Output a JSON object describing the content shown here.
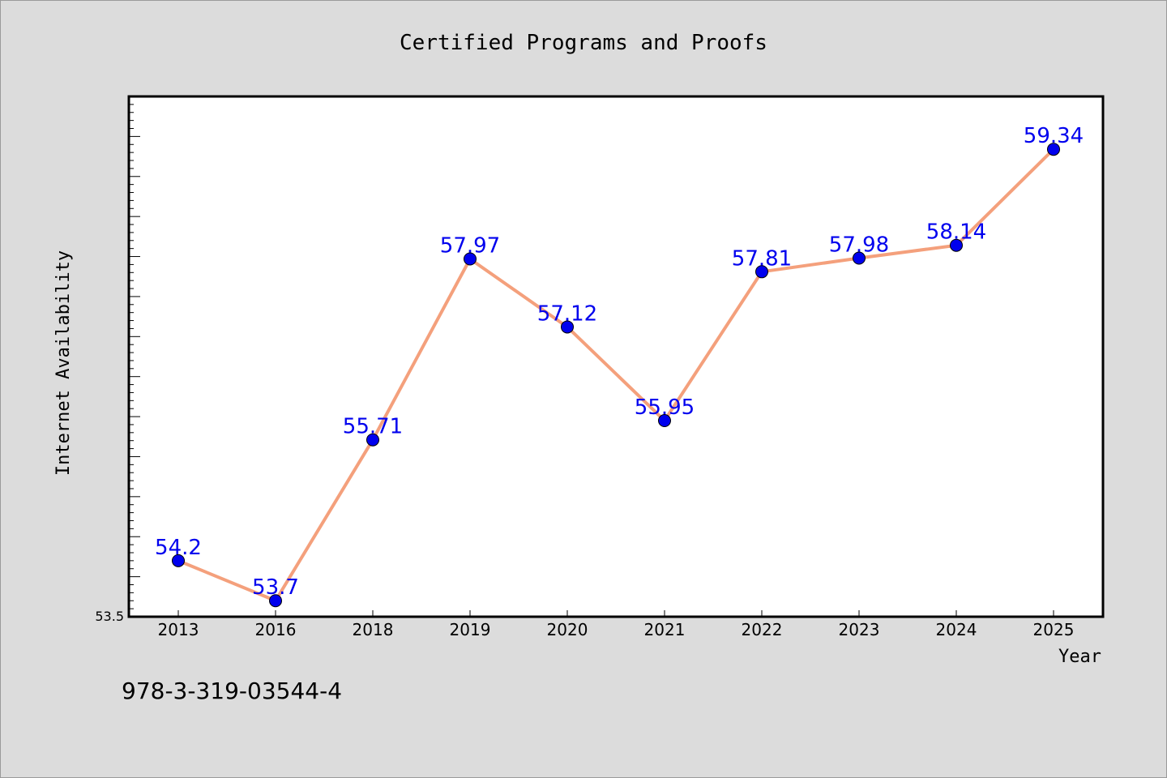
{
  "chart_data": {
    "type": "line",
    "title": "Certified Programs and Proofs",
    "xlabel": "Year",
    "ylabel": "Internet Availability",
    "categories": [
      "2013",
      "2016",
      "2018",
      "2019",
      "2020",
      "2021",
      "2022",
      "2023",
      "2024",
      "2025"
    ],
    "series": [
      {
        "values": [
          54.2,
          53.7,
          55.71,
          57.97,
          57.12,
          55.95,
          57.81,
          57.98,
          58.14,
          59.34
        ]
      }
    ],
    "data_labels": [
      "54.2",
      "53.7",
      "55.71",
      "57.97",
      "57.12",
      "55.95",
      "57.81",
      "57.98",
      "58.14",
      "59.34"
    ],
    "ylim": [
      53.5,
      60.0
    ],
    "y_min_label": "53.5",
    "grid": false,
    "colors": {
      "line": "#f4a07c",
      "marker": "#0000ee",
      "label": "#0000ee",
      "background": "#dcdcdc",
      "plot_background": "#ffffff"
    }
  },
  "footer": {
    "isbn": "978-3-319-03544-4"
  }
}
